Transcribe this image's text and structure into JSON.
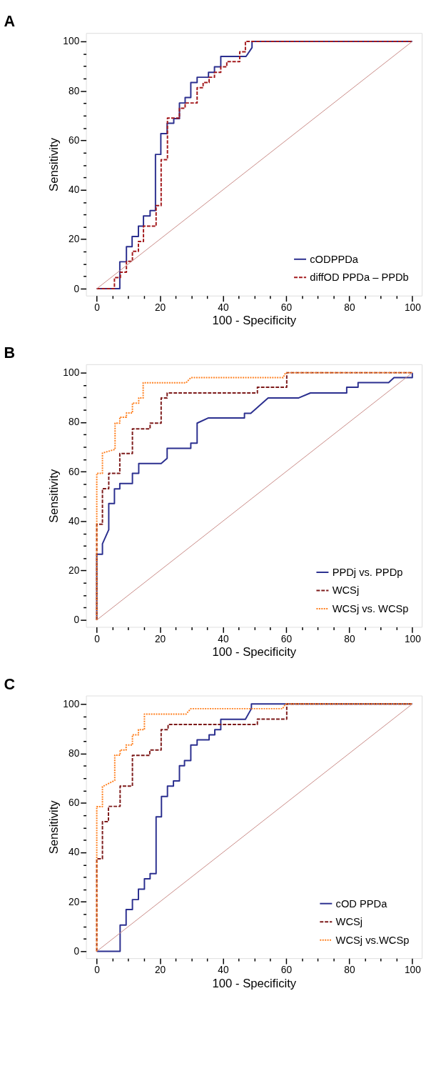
{
  "chart_data": [
    {
      "type": "line",
      "title": "A",
      "xlabel": "100 - Specificity",
      "ylabel": "Sensitivity",
      "xlim": [
        -3.4,
        103
      ],
      "ylim": [
        -2.8,
        103.4
      ],
      "xticks": [
        0,
        {
          "value": 5,
          "label": null
        },
        {
          "value": 10,
          "label": null
        },
        {
          "value": 15,
          "label": null
        },
        20,
        {
          "value": 25,
          "label": null
        },
        {
          "value": 30,
          "label": null
        },
        {
          "value": 35,
          "label": null
        },
        40,
        {
          "value": 45,
          "label": null
        },
        {
          "value": 50,
          "label": null
        },
        {
          "value": 55,
          "label": null
        },
        60,
        {
          "value": 65,
          "label": null
        },
        {
          "value": 70,
          "label": null
        },
        {
          "value": 75,
          "label": null
        },
        80,
        {
          "value": 85,
          "label": null
        },
        {
          "value": 90,
          "label": null
        },
        {
          "value": 95,
          "label": null
        },
        100
      ],
      "yticks": [
        0,
        {
          "value": 5,
          "label": null
        },
        {
          "value": 10,
          "label": null
        },
        {
          "value": 15,
          "label": null
        },
        20,
        {
          "value": 25,
          "label": null
        },
        {
          "value": 30,
          "label": null
        },
        {
          "value": 35,
          "label": null
        },
        40,
        {
          "value": 45,
          "label": null
        },
        {
          "value": 50,
          "label": null
        },
        {
          "value": 55,
          "label": null
        },
        60,
        {
          "value": 65,
          "label": null
        },
        {
          "value": 70,
          "label": null
        },
        {
          "value": 75,
          "label": null
        },
        80,
        {
          "value": 85,
          "label": null
        },
        {
          "value": 90,
          "label": null
        },
        {
          "value": 95,
          "label": null
        },
        100
      ],
      "grid": false,
      "legend": "bottom right",
      "series": [
        {
          "name": "cODPPDa",
          "color": "#2b2f8f",
          "line_style": "solid",
          "x": [
            0,
            7.3,
            7.3,
            9.4,
            9.4,
            11.2,
            11.2,
            13.2,
            13.2,
            14.8,
            14.8,
            16.9,
            16.9,
            18.6,
            18.6,
            20.3,
            20.3,
            22.3,
            22.3,
            24.4,
            24.4,
            26.2,
            26.2,
            28.0,
            28.0,
            29.8,
            29.8,
            31.8,
            31.8,
            35.4,
            35.4,
            37.3,
            37.3,
            39.3,
            39.3,
            47.3,
            49.2,
            49.2,
            100
          ],
          "values": [
            0,
            0,
            10.9,
            10.9,
            17.0,
            17.0,
            21.1,
            21.1,
            25.3,
            25.3,
            29.4,
            29.4,
            31.6,
            31.6,
            54.3,
            54.3,
            62.7,
            62.7,
            66.9,
            66.9,
            68.8,
            68.8,
            75.1,
            75.1,
            77.3,
            77.3,
            83.4,
            83.4,
            85.5,
            85.5,
            87.5,
            87.5,
            89.7,
            89.7,
            93.9,
            93.9,
            97.5,
            100,
            100
          ]
        },
        {
          "name": "diffOD PPDa – PPDb",
          "color": "#a3191c",
          "line_style": "dashed",
          "x": [
            0,
            5.6,
            5.6,
            7.5,
            7.5,
            9.4,
            9.4,
            11.3,
            11.3,
            13.2,
            13.2,
            14.8,
            14.8,
            18.8,
            18.8,
            20.4,
            20.4,
            22.4,
            22.4,
            26.2,
            26.2,
            28.0,
            28.0,
            31.8,
            31.8,
            33.7,
            33.7,
            35.6,
            35.6,
            37.3,
            37.3,
            39.3,
            39.3,
            41.2,
            41.2,
            45.3,
            45.3,
            47.1,
            47.1,
            100
          ],
          "values": [
            0,
            0,
            4.5,
            4.5,
            6.7,
            6.7,
            11.1,
            11.1,
            15.1,
            15.1,
            19.1,
            19.1,
            25.3,
            25.3,
            33.6,
            33.6,
            52.2,
            52.2,
            69.0,
            69.0,
            73.0,
            73.0,
            75.1,
            75.1,
            81.3,
            81.3,
            83.4,
            83.4,
            85.5,
            85.5,
            87.5,
            87.5,
            89.7,
            89.7,
            91.8,
            91.8,
            95.8,
            95.8,
            100,
            100
          ]
        },
        {
          "color": "#c98a86",
          "line_style": "solid",
          "x": [
            0,
            100
          ],
          "values": [
            0,
            100
          ]
        }
      ]
    },
    {
      "type": "line",
      "title": "B",
      "xlabel": "100 - Specificity",
      "ylabel": "Sensitivity",
      "xlim": [
        -3.4,
        103
      ],
      "ylim": [
        -2.8,
        103.4
      ],
      "xticks": [
        0,
        {
          "value": 5,
          "label": null
        },
        {
          "value": 10,
          "label": null
        },
        {
          "value": 15,
          "label": null
        },
        20,
        {
          "value": 25,
          "label": null
        },
        {
          "value": 30,
          "label": null
        },
        {
          "value": 35,
          "label": null
        },
        40,
        {
          "value": 45,
          "label": null
        },
        {
          "value": 50,
          "label": null
        },
        {
          "value": 55,
          "label": null
        },
        60,
        {
          "value": 65,
          "label": null
        },
        {
          "value": 70,
          "label": null
        },
        {
          "value": 75,
          "label": null
        },
        80,
        {
          "value": 85,
          "label": null
        },
        {
          "value": 90,
          "label": null
        },
        {
          "value": 95,
          "label": null
        },
        100
      ],
      "yticks": [
        0,
        {
          "value": 5,
          "label": null
        },
        {
          "value": 10,
          "label": null
        },
        {
          "value": 15,
          "label": null
        },
        20,
        {
          "value": 25,
          "label": null
        },
        {
          "value": 30,
          "label": null
        },
        {
          "value": 35,
          "label": null
        },
        40,
        {
          "value": 45,
          "label": null
        },
        {
          "value": 50,
          "label": null
        },
        {
          "value": 55,
          "label": null
        },
        60,
        {
          "value": 65,
          "label": null
        },
        {
          "value": 70,
          "label": null
        },
        {
          "value": 75,
          "label": null
        },
        80,
        {
          "value": 85,
          "label": null
        },
        {
          "value": 90,
          "label": null
        },
        {
          "value": 95,
          "label": null
        },
        100
      ],
      "grid": false,
      "legend": "bottom right",
      "series": [
        {
          "name": "PPDj vs. PPDp",
          "color": "#2b2f8f",
          "line_style": "solid",
          "x": [
            0,
            0,
            1.8,
            1.8,
            3.8,
            3.8,
            5.6,
            5.6,
            7.3,
            7.3,
            11.3,
            11.3,
            13.3,
            13.3,
            20.4,
            22.3,
            22.3,
            29.8,
            29.8,
            31.8,
            31.8,
            35.4,
            46.8,
            46.8,
            48.8,
            54.3,
            64.0,
            67.7,
            79.2,
            79.2,
            82.8,
            82.8,
            92.5,
            94.2,
            100,
            100
          ],
          "values": [
            0,
            26.6,
            26.6,
            30.8,
            36.5,
            47.1,
            47.1,
            53.0,
            53.0,
            55.2,
            55.2,
            59.3,
            59.3,
            63.3,
            63.3,
            65.4,
            69.4,
            69.4,
            71.5,
            71.5,
            79.6,
            81.7,
            81.7,
            83.6,
            83.6,
            89.8,
            89.8,
            91.8,
            91.8,
            94.1,
            94.1,
            96.0,
            96.0,
            98.0,
            98.0,
            100
          ]
        },
        {
          "name": "WCSj",
          "color": "#7d1a1a",
          "line_style": "dashed",
          "x": [
            0,
            0,
            1.8,
            1.8,
            3.8,
            3.8,
            7.3,
            7.3,
            11.3,
            11.3,
            16.9,
            16.9,
            20.4,
            20.4,
            22.3,
            22.3,
            50.9,
            50.9,
            60.2,
            60.2,
            100
          ],
          "values": [
            0,
            38.7,
            38.7,
            53.1,
            53.1,
            59.3,
            59.3,
            67.3,
            67.3,
            77.3,
            77.3,
            79.6,
            79.6,
            89.8,
            89.8,
            91.8,
            91.8,
            94.1,
            94.1,
            100,
            100
          ]
        },
        {
          "name": "WCSj vs. WCSp",
          "color": "#ff7f1e",
          "line_style": "dotted",
          "x": [
            0,
            0,
            1.8,
            1.8,
            5.8,
            5.8,
            7.3,
            7.3,
            9.4,
            9.4,
            11.3,
            11.3,
            13.3,
            13.3,
            14.7,
            14.7,
            28.3,
            29.8,
            59.1,
            59.8,
            100
          ],
          "values": [
            0,
            59.3,
            59.3,
            67.5,
            69.0,
            79.6,
            79.6,
            82.0,
            82.0,
            83.7,
            83.7,
            87.7,
            87.7,
            89.8,
            89.8,
            95.9,
            95.9,
            98.0,
            98.0,
            100,
            100
          ]
        },
        {
          "color": "#c98a86",
          "line_style": "solid",
          "x": [
            0,
            100
          ],
          "values": [
            0,
            100
          ]
        }
      ]
    },
    {
      "type": "line",
      "title": "C",
      "xlabel": "100 - Specificity",
      "ylabel": "Sensitivity",
      "xlim": [
        -3.4,
        103
      ],
      "ylim": [
        -2.8,
        103.4
      ],
      "xticks": [
        0,
        {
          "value": 5,
          "label": null
        },
        {
          "value": 10,
          "label": null
        },
        {
          "value": 15,
          "label": null
        },
        20,
        {
          "value": 25,
          "label": null
        },
        {
          "value": 30,
          "label": null
        },
        {
          "value": 35,
          "label": null
        },
        40,
        {
          "value": 45,
          "label": null
        },
        {
          "value": 50,
          "label": null
        },
        {
          "value": 55,
          "label": null
        },
        60,
        {
          "value": 65,
          "label": null
        },
        {
          "value": 70,
          "label": null
        },
        {
          "value": 75,
          "label": null
        },
        80,
        {
          "value": 85,
          "label": null
        },
        {
          "value": 90,
          "label": null
        },
        {
          "value": 95,
          "label": null
        },
        100
      ],
      "yticks": [
        0,
        {
          "value": 5,
          "label": null
        },
        {
          "value": 10,
          "label": null
        },
        {
          "value": 15,
          "label": null
        },
        20,
        {
          "value": 25,
          "label": null
        },
        {
          "value": 30,
          "label": null
        },
        {
          "value": 35,
          "label": null
        },
        40,
        {
          "value": 45,
          "label": null
        },
        {
          "value": 50,
          "label": null
        },
        {
          "value": 55,
          "label": null
        },
        60,
        {
          "value": 65,
          "label": null
        },
        {
          "value": 70,
          "label": null
        },
        {
          "value": 75,
          "label": null
        },
        80,
        {
          "value": 85,
          "label": null
        },
        {
          "value": 90,
          "label": null
        },
        {
          "value": 95,
          "label": null
        },
        100
      ],
      "grid": false,
      "legend": "bottom right",
      "series": [
        {
          "name": "cOD PPDa",
          "color": "#2b2f8f",
          "line_style": "solid",
          "x": [
            0,
            7.4,
            7.4,
            9.3,
            9.3,
            11.3,
            11.3,
            13.2,
            13.2,
            15.1,
            15.1,
            16.9,
            16.9,
            18.8,
            18.8,
            20.5,
            20.5,
            22.4,
            22.4,
            24.3,
            24.3,
            26.2,
            26.2,
            27.8,
            27.8,
            29.8,
            29.8,
            31.8,
            31.8,
            35.6,
            35.6,
            37.4,
            37.4,
            39.3,
            39.3,
            47.1,
            49.0,
            49.0,
            100
          ],
          "values": [
            0,
            0,
            10.6,
            10.6,
            16.9,
            16.9,
            20.9,
            20.9,
            25.1,
            25.1,
            29.3,
            29.3,
            31.4,
            31.4,
            54.4,
            54.4,
            62.6,
            62.6,
            66.8,
            66.8,
            68.9,
            68.9,
            75.0,
            75.0,
            77.1,
            77.1,
            83.4,
            83.4,
            85.5,
            85.5,
            87.5,
            87.5,
            89.6,
            89.6,
            93.8,
            93.8,
            98.1,
            100,
            100
          ]
        },
        {
          "name": "WCSj",
          "color": "#7d1a1a",
          "line_style": "dashed",
          "x": [
            0,
            0,
            1.8,
            1.8,
            3.7,
            3.7,
            7.4,
            7.4,
            11.3,
            11.3,
            16.8,
            16.8,
            20.4,
            20.4,
            22.6,
            22.6,
            50.9,
            50.9,
            60.2,
            60.2,
            100
          ],
          "values": [
            0,
            37.4,
            37.4,
            52.4,
            52.4,
            58.6,
            58.6,
            66.8,
            66.8,
            79.2,
            79.2,
            81.4,
            81.4,
            89.6,
            89.6,
            91.7,
            91.7,
            93.9,
            93.9,
            100,
            100
          ]
        },
        {
          "name": "WCSj vs.WCSp",
          "color": "#ff7f1e",
          "line_style": "dotted",
          "x": [
            0,
            0,
            1.8,
            1.8,
            5.7,
            5.7,
            7.4,
            7.4,
            9.3,
            9.3,
            11.3,
            11.3,
            13.2,
            13.2,
            15.1,
            15.1,
            28.3,
            29.8,
            58.9,
            59.8,
            100
          ],
          "values": [
            0,
            58.5,
            58.5,
            66.6,
            69.1,
            79.3,
            79.3,
            81.4,
            81.4,
            83.4,
            83.4,
            87.5,
            87.5,
            89.6,
            89.6,
            95.9,
            95.9,
            98.1,
            98.1,
            100,
            100
          ]
        },
        {
          "color": "#c98a86",
          "line_style": "solid",
          "x": [
            0,
            100
          ],
          "values": [
            0,
            100
          ]
        }
      ]
    }
  ]
}
